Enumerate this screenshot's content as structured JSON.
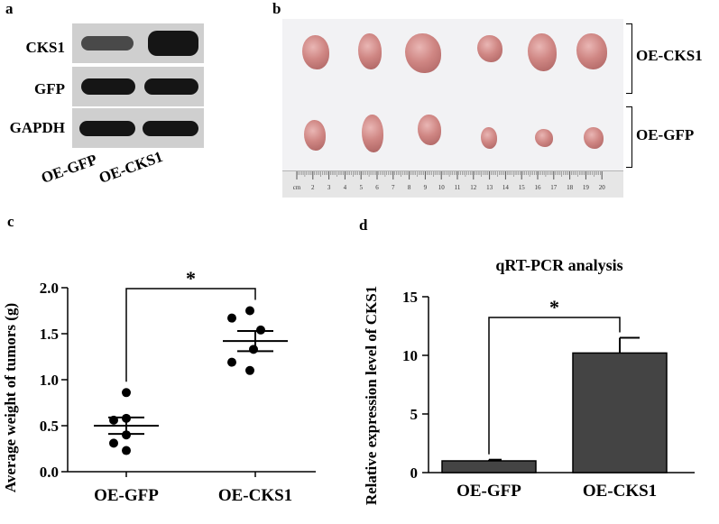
{
  "panels": {
    "a": "a",
    "b": "b",
    "c": "c",
    "d": "d"
  },
  "western_blot": {
    "rows": [
      "CKS1",
      "GFP",
      "GAPDH"
    ],
    "lanes": [
      "OE-GFP",
      "OE-CKS1"
    ]
  },
  "tumor_photo": {
    "groups": [
      "OE-CKS1",
      "OE-GFP"
    ],
    "ruler_ticks": [
      "cm",
      "2",
      "3",
      "4",
      "5",
      "6",
      "7",
      "8",
      "9",
      "10",
      "11",
      "12",
      "13",
      "14",
      "15",
      "16",
      "17",
      "18",
      "19",
      "20"
    ]
  },
  "chart_data": [
    {
      "type": "scatter",
      "panel": "c",
      "title": "",
      "ylabel": "Average weight of tumors (g)",
      "xlabel": "",
      "categories": [
        "OE-GFP",
        "OE-CKS1"
      ],
      "ylim": [
        0,
        2.0
      ],
      "yticks": [
        "0.0",
        "0.5",
        "1.0",
        "1.5",
        "2.0"
      ],
      "series": [
        {
          "points": [
            0.86,
            0.58,
            0.56,
            0.4,
            0.31,
            0.23
          ],
          "mean": 0.5,
          "sem": 0.09
        },
        {
          "points": [
            1.75,
            1.67,
            1.54,
            1.33,
            1.19,
            1.1
          ],
          "mean": 1.42,
          "sem": 0.11
        }
      ],
      "significance": "*",
      "grid": false
    },
    {
      "type": "bar",
      "panel": "d",
      "title": "qRT-PCR analysis",
      "ylabel": "Relative expression  level of CKS1",
      "xlabel": "",
      "categories": [
        "OE-GFP",
        "OE-CKS1"
      ],
      "values": [
        1.0,
        10.2
      ],
      "errors": [
        0.1,
        1.3
      ],
      "ylim": [
        0,
        15
      ],
      "yticks": [
        "0",
        "5",
        "10",
        "15"
      ],
      "significance": "*",
      "bar_color": "#444444",
      "grid": false
    }
  ]
}
